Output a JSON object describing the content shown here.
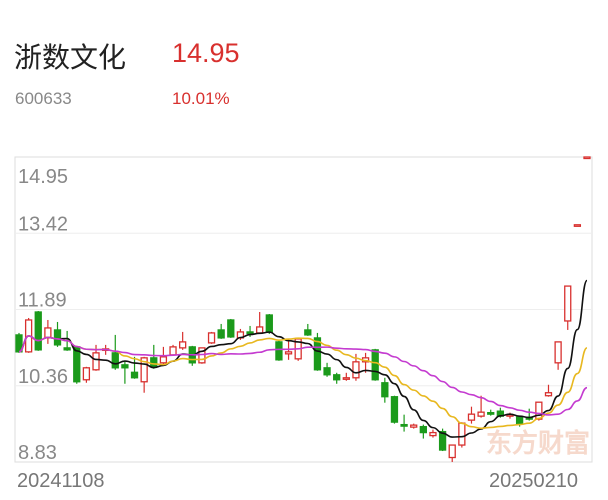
{
  "header": {
    "name": "浙数文化",
    "price": "14.95",
    "code": "600633",
    "change_pct": "10.01%"
  },
  "watermark": "东方财富",
  "colors": {
    "up": "#d8302e",
    "down": "#1b9a1b",
    "ma5": "#111111",
    "ma10": "#e8b820",
    "ma20": "#c43bd0",
    "grid": "#eeeeee",
    "axis_text": "#888888",
    "watermark": "#f6d9cc"
  },
  "chart_data": {
    "type": "candlestick",
    "ylim": [
      8.83,
      14.95
    ],
    "y_ticks": [
      "14.95",
      "13.42",
      "11.89",
      "10.36",
      "8.83"
    ],
    "x_labels": {
      "start": "20241108",
      "end": "20250210"
    },
    "grid": true,
    "moving_averages": [
      {
        "period": 5,
        "color": "#111111"
      },
      {
        "period": 10,
        "color": "#e8b820"
      },
      {
        "period": 20,
        "color": "#c43bd0"
      }
    ],
    "ohlc": [
      [
        11.38,
        11.42,
        11.02,
        11.04
      ],
      [
        11.04,
        11.72,
        11.02,
        11.68
      ],
      [
        11.84,
        11.86,
        11.06,
        11.08
      ],
      [
        11.32,
        11.68,
        11.2,
        11.52
      ],
      [
        11.48,
        11.64,
        11.14,
        11.18
      ],
      [
        11.12,
        11.46,
        11.06,
        11.08
      ],
      [
        11.14,
        11.16,
        10.4,
        10.44
      ],
      [
        10.48,
        10.74,
        10.42,
        10.72
      ],
      [
        10.68,
        11.18,
        10.66,
        11.02
      ],
      [
        11.08,
        11.18,
        10.98,
        11.1
      ],
      [
        11.02,
        11.38,
        10.68,
        10.72
      ],
      [
        10.78,
        10.84,
        10.4,
        10.72
      ],
      [
        10.63,
        10.94,
        10.5,
        10.52
      ],
      [
        10.44,
        10.94,
        10.22,
        10.92
      ],
      [
        10.92,
        11.18,
        10.7,
        10.74
      ],
      [
        10.82,
        11.14,
        10.76,
        10.94
      ],
      [
        10.98,
        11.18,
        10.96,
        11.14
      ],
      [
        11.12,
        11.44,
        11.08,
        11.24
      ],
      [
        11.14,
        11.16,
        10.76,
        10.82
      ],
      [
        10.82,
        11.12,
        10.8,
        11.12
      ],
      [
        11.22,
        11.44,
        11.2,
        11.42
      ],
      [
        11.48,
        11.6,
        11.3,
        11.32
      ],
      [
        11.68,
        11.7,
        11.32,
        11.34
      ],
      [
        11.32,
        11.5,
        11.28,
        11.44
      ],
      [
        11.44,
        11.56,
        11.34,
        11.42
      ],
      [
        11.42,
        11.84,
        11.4,
        11.54
      ],
      [
        11.78,
        11.8,
        11.4,
        11.44
      ],
      [
        11.24,
        11.26,
        10.86,
        10.88
      ],
      [
        11.0,
        11.3,
        10.88,
        11.04
      ],
      [
        10.9,
        11.32,
        10.86,
        11.3
      ],
      [
        11.48,
        11.6,
        11.36,
        11.38
      ],
      [
        11.32,
        11.42,
        10.66,
        10.68
      ],
      [
        10.72,
        10.82,
        10.54,
        10.58
      ],
      [
        10.58,
        10.62,
        10.4,
        10.48
      ],
      [
        10.5,
        10.62,
        10.46,
        10.52
      ],
      [
        10.52,
        11.0,
        10.46,
        10.84
      ],
      [
        10.84,
        11.02,
        10.62,
        10.92
      ],
      [
        11.08,
        11.1,
        10.46,
        10.48
      ],
      [
        10.42,
        10.52,
        10.02,
        10.14
      ],
      [
        10.14,
        10.16,
        9.6,
        9.63
      ],
      [
        9.58,
        9.78,
        9.44,
        9.56
      ],
      [
        9.53,
        9.6,
        9.5,
        9.57
      ],
      [
        9.54,
        9.58,
        9.3,
        9.42
      ],
      [
        9.36,
        9.48,
        9.32,
        9.42
      ],
      [
        9.44,
        9.5,
        9.05,
        9.07
      ],
      [
        8.92,
        9.17,
        8.83,
        9.17
      ],
      [
        9.17,
        9.63,
        9.12,
        9.61
      ],
      [
        9.67,
        9.94,
        9.6,
        9.79
      ],
      [
        9.75,
        10.16,
        9.72,
        9.83
      ],
      [
        9.82,
        9.88,
        9.76,
        9.8
      ],
      [
        9.85,
        9.92,
        9.72,
        9.75
      ],
      [
        9.76,
        9.82,
        9.7,
        9.78
      ],
      [
        9.73,
        9.75,
        9.54,
        9.59
      ],
      [
        9.73,
        9.9,
        9.66,
        9.69
      ],
      [
        9.69,
        10.03,
        9.66,
        10.03
      ],
      [
        10.16,
        10.38,
        10.14,
        10.22
      ],
      [
        10.82,
        11.24,
        10.68,
        11.24
      ],
      [
        11.66,
        12.36,
        11.48,
        12.36
      ],
      [
        13.59,
        13.59,
        13.59,
        13.59
      ],
      [
        14.95,
        14.95,
        14.95,
        14.95
      ]
    ]
  }
}
